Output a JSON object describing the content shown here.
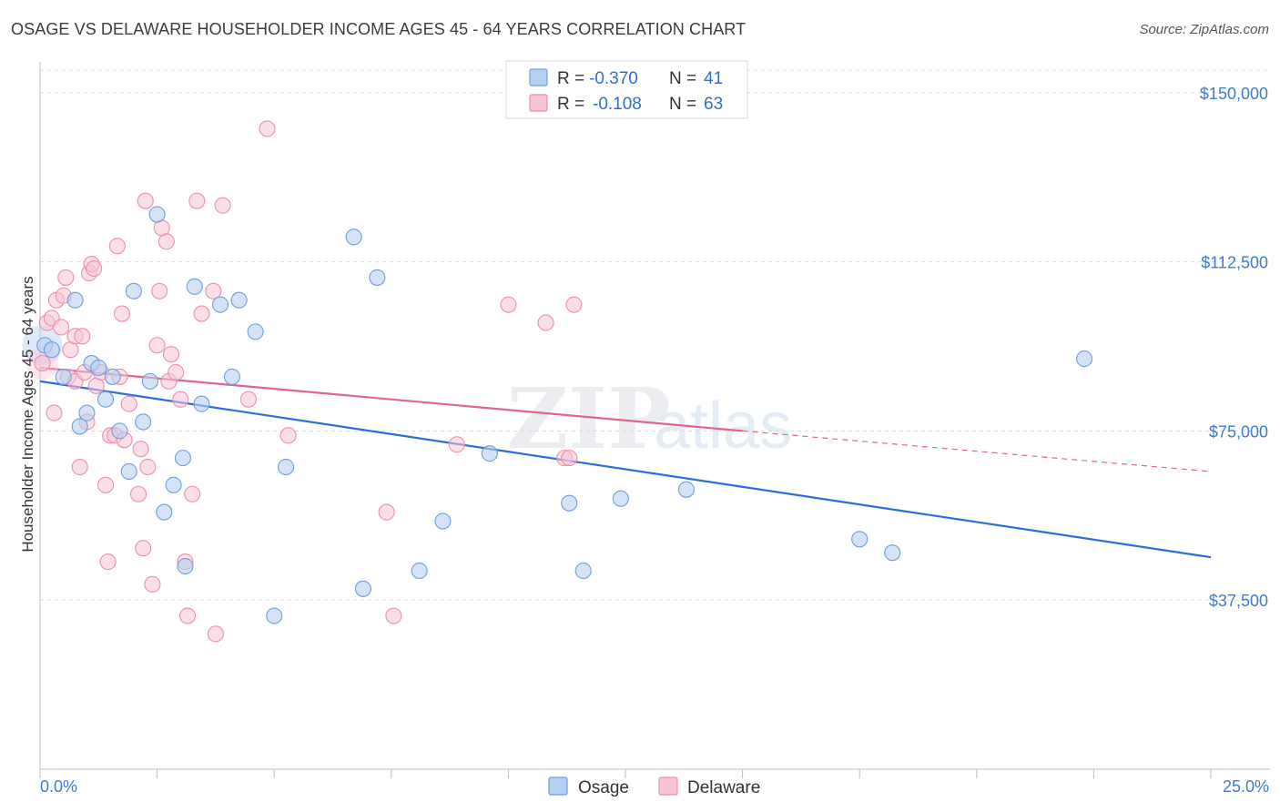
{
  "header": {
    "title": "OSAGE VS DELAWARE HOUSEHOLDER INCOME AGES 45 - 64 YEARS CORRELATION CHART",
    "source": "Source: ZipAtlas.com"
  },
  "legend_top": {
    "rows": [
      {
        "r_label": "R = ",
        "r_value": "-0.370",
        "n_label": "N = ",
        "n_value": "41"
      },
      {
        "r_label": "R = ",
        "r_value": "-0.108",
        "n_label": "N = ",
        "n_value": "63"
      }
    ]
  },
  "legend_bottom": {
    "items": [
      "Osage",
      "Delaware"
    ]
  },
  "watermark": {
    "zip": "ZIP",
    "atlas": "atlas"
  },
  "colors": {
    "osage_fill": "#b8d0f0",
    "osage_stroke": "#6d9fe0",
    "osage_line": "#2a6fd6",
    "delaware_fill": "#f8c4d4",
    "delaware_stroke": "#ec8fad",
    "delaware_line": "#e0648f",
    "tick_text": "#3f7bd0"
  },
  "chart_data": {
    "type": "scatter",
    "title": "OSAGE VS DELAWARE HOUSEHOLDER INCOME AGES 45 - 64 YEARS CORRELATION CHART",
    "xlabel": "",
    "ylabel": "Householder Income Ages 45 - 64 years",
    "xlim": [
      0,
      25
    ],
    "ylim": [
      0,
      155000
    ],
    "x_tick_labels": [
      "0.0%",
      "25.0%"
    ],
    "y_ticks": [
      37500,
      75000,
      112500,
      150000
    ],
    "y_tick_labels": [
      "$37,500",
      "$75,000",
      "$112,500",
      "$150,000"
    ],
    "grid": true,
    "legend_position": "top-center",
    "series": [
      {
        "name": "Osage",
        "r": -0.37,
        "n": 41,
        "trend": {
          "x": [
            0,
            25
          ],
          "y": [
            86000,
            47000
          ]
        },
        "points": [
          {
            "x": 0.1,
            "y": 94000
          },
          {
            "x": 0.25,
            "y": 93000
          },
          {
            "x": 0.5,
            "y": 87000
          },
          {
            "x": 0.75,
            "y": 104000
          },
          {
            "x": 1.1,
            "y": 90000
          },
          {
            "x": 1.0,
            "y": 79000
          },
          {
            "x": 0.85,
            "y": 76000
          },
          {
            "x": 1.25,
            "y": 89000
          },
          {
            "x": 1.4,
            "y": 82000
          },
          {
            "x": 1.55,
            "y": 87000
          },
          {
            "x": 1.7,
            "y": 75000
          },
          {
            "x": 1.9,
            "y": 66000
          },
          {
            "x": 2.0,
            "y": 106000
          },
          {
            "x": 2.2,
            "y": 77000
          },
          {
            "x": 2.35,
            "y": 86000
          },
          {
            "x": 2.5,
            "y": 123000
          },
          {
            "x": 2.65,
            "y": 57000
          },
          {
            "x": 2.85,
            "y": 63000
          },
          {
            "x": 3.05,
            "y": 69000
          },
          {
            "x": 3.1,
            "y": 45000
          },
          {
            "x": 3.3,
            "y": 107000
          },
          {
            "x": 3.45,
            "y": 81000
          },
          {
            "x": 3.85,
            "y": 103000
          },
          {
            "x": 4.1,
            "y": 87000
          },
          {
            "x": 4.25,
            "y": 104000
          },
          {
            "x": 4.6,
            "y": 97000
          },
          {
            "x": 5.0,
            "y": 34000
          },
          {
            "x": 5.25,
            "y": 67000
          },
          {
            "x": 6.7,
            "y": 118000
          },
          {
            "x": 6.9,
            "y": 40000
          },
          {
            "x": 7.2,
            "y": 109000
          },
          {
            "x": 8.1,
            "y": 44000
          },
          {
            "x": 8.6,
            "y": 55000
          },
          {
            "x": 9.6,
            "y": 70000
          },
          {
            "x": 11.3,
            "y": 59000
          },
          {
            "x": 11.6,
            "y": 44000
          },
          {
            "x": 12.4,
            "y": 60000
          },
          {
            "x": 13.8,
            "y": 62000
          },
          {
            "x": 17.5,
            "y": 51000
          },
          {
            "x": 18.2,
            "y": 48000
          },
          {
            "x": 22.3,
            "y": 91000
          }
        ]
      },
      {
        "name": "Delaware",
        "r": -0.108,
        "n": 63,
        "trend": {
          "x": [
            0,
            15
          ],
          "y": [
            89000,
            75000
          ]
        },
        "trend_dashed": {
          "x": [
            15,
            25
          ],
          "y": [
            75000,
            66000
          ]
        },
        "points": [
          {
            "x": 0.05,
            "y": 90000
          },
          {
            "x": 0.15,
            "y": 99000
          },
          {
            "x": 0.25,
            "y": 100000
          },
          {
            "x": 0.3,
            "y": 79000
          },
          {
            "x": 0.35,
            "y": 104000
          },
          {
            "x": 0.45,
            "y": 98000
          },
          {
            "x": 0.55,
            "y": 109000
          },
          {
            "x": 0.5,
            "y": 105000
          },
          {
            "x": 0.6,
            "y": 87000
          },
          {
            "x": 0.65,
            "y": 93000
          },
          {
            "x": 0.75,
            "y": 96000
          },
          {
            "x": 0.75,
            "y": 86000
          },
          {
            "x": 0.85,
            "y": 67000
          },
          {
            "x": 0.9,
            "y": 96000
          },
          {
            "x": 0.95,
            "y": 88000
          },
          {
            "x": 1.0,
            "y": 77000
          },
          {
            "x": 1.05,
            "y": 110000
          },
          {
            "x": 1.1,
            "y": 112000
          },
          {
            "x": 1.15,
            "y": 111000
          },
          {
            "x": 1.2,
            "y": 85000
          },
          {
            "x": 1.3,
            "y": 88000
          },
          {
            "x": 1.4,
            "y": 63000
          },
          {
            "x": 1.45,
            "y": 46000
          },
          {
            "x": 1.5,
            "y": 74000
          },
          {
            "x": 1.6,
            "y": 74000
          },
          {
            "x": 1.65,
            "y": 116000
          },
          {
            "x": 1.7,
            "y": 87000
          },
          {
            "x": 1.75,
            "y": 101000
          },
          {
            "x": 1.8,
            "y": 73000
          },
          {
            "x": 1.9,
            "y": 81000
          },
          {
            "x": 2.1,
            "y": 61000
          },
          {
            "x": 2.15,
            "y": 71000
          },
          {
            "x": 2.2,
            "y": 49000
          },
          {
            "x": 2.25,
            "y": 126000
          },
          {
            "x": 2.3,
            "y": 67000
          },
          {
            "x": 2.4,
            "y": 41000
          },
          {
            "x": 2.5,
            "y": 94000
          },
          {
            "x": 2.55,
            "y": 106000
          },
          {
            "x": 2.6,
            "y": 120000
          },
          {
            "x": 2.7,
            "y": 117000
          },
          {
            "x": 2.75,
            "y": 86000
          },
          {
            "x": 2.8,
            "y": 92000
          },
          {
            "x": 2.9,
            "y": 88000
          },
          {
            "x": 3.0,
            "y": 82000
          },
          {
            "x": 3.1,
            "y": 46000
          },
          {
            "x": 3.15,
            "y": 34000
          },
          {
            "x": 3.25,
            "y": 61000
          },
          {
            "x": 3.35,
            "y": 126000
          },
          {
            "x": 3.45,
            "y": 101000
          },
          {
            "x": 3.7,
            "y": 106000
          },
          {
            "x": 3.75,
            "y": 30000
          },
          {
            "x": 3.9,
            "y": 125000
          },
          {
            "x": 4.45,
            "y": 82000
          },
          {
            "x": 4.85,
            "y": 142000
          },
          {
            "x": 5.3,
            "y": 74000
          },
          {
            "x": 7.4,
            "y": 57000
          },
          {
            "x": 7.55,
            "y": 34000
          },
          {
            "x": 8.9,
            "y": 72000
          },
          {
            "x": 10.0,
            "y": 103000
          },
          {
            "x": 10.8,
            "y": 99000
          },
          {
            "x": 11.2,
            "y": 69000
          },
          {
            "x": 11.4,
            "y": 103000
          },
          {
            "x": 11.3,
            "y": 69000
          }
        ]
      }
    ]
  }
}
